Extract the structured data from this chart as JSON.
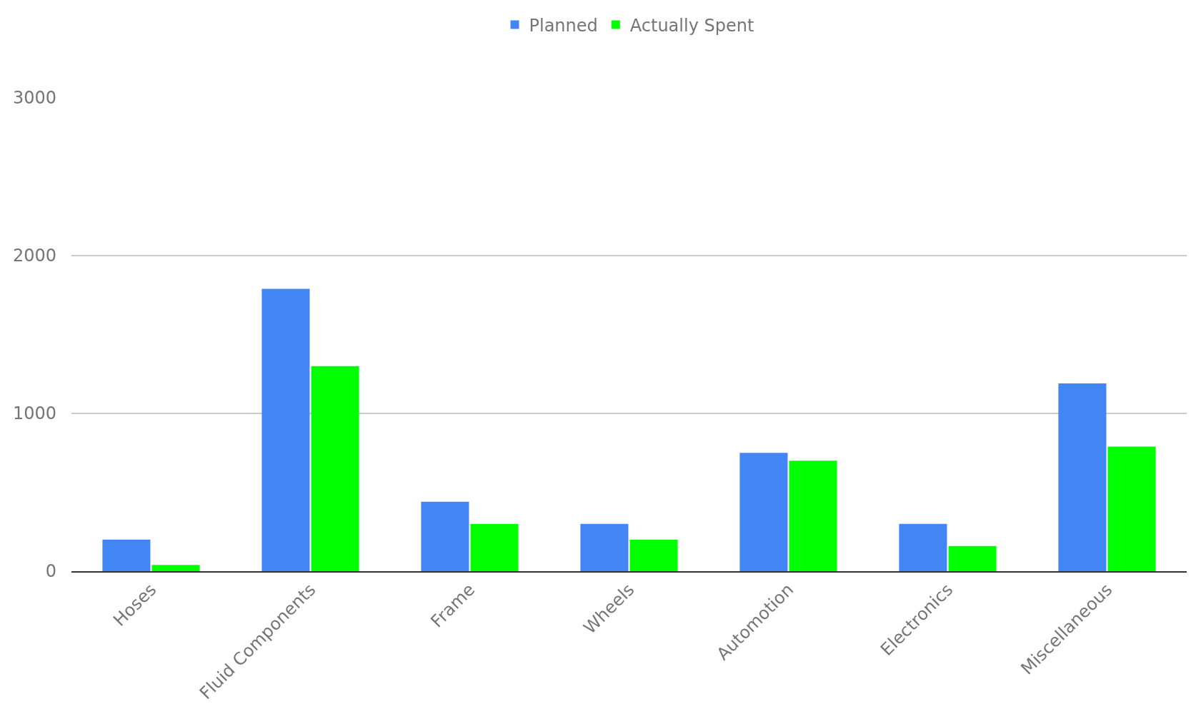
{
  "chart_data": {
    "type": "bar",
    "categories": [
      "Hoses",
      "Fluid Components",
      "Frame",
      "Wheels",
      "Automotion",
      "Electronics",
      "Miscellaneous"
    ],
    "series": [
      {
        "name": "Planned",
        "color": "#4285f4",
        "values": [
          200,
          1790,
          440,
          300,
          750,
          300,
          1190
        ]
      },
      {
        "name": "Actually Spent",
        "color": "#00ff00",
        "values": [
          40,
          1300,
          300,
          200,
          700,
          160,
          790
        ]
      }
    ],
    "ylim": [
      0,
      3000
    ],
    "yticks": [
      0,
      1000,
      2000,
      3000
    ],
    "grid": "y",
    "legend": "top"
  }
}
